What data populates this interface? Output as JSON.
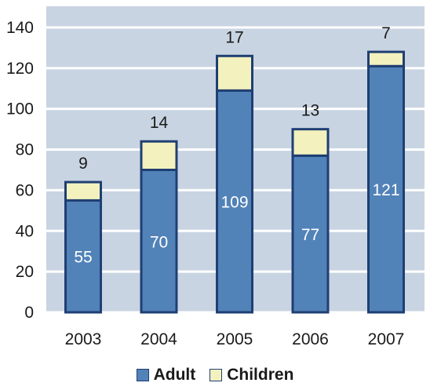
{
  "chart_data": {
    "type": "bar",
    "stacked": true,
    "categories": [
      "2003",
      "2004",
      "2005",
      "2006",
      "2007"
    ],
    "series": [
      {
        "name": "Adult",
        "values": [
          55,
          70,
          109,
          77,
          121
        ],
        "color": "#5182b8"
      },
      {
        "name": "Children",
        "values": [
          9,
          14,
          17,
          13,
          7
        ],
        "color": "#f3f1bd"
      }
    ],
    "y_ticks": [
      0,
      20,
      40,
      60,
      80,
      100,
      120,
      140
    ],
    "ylim": [
      0,
      140
    ],
    "grid": true,
    "legend_position": "bottom-center",
    "colors": {
      "plot_background": "#c9d4e2",
      "gridline": "#ffffff",
      "bar_border": "#1f3f73"
    }
  }
}
